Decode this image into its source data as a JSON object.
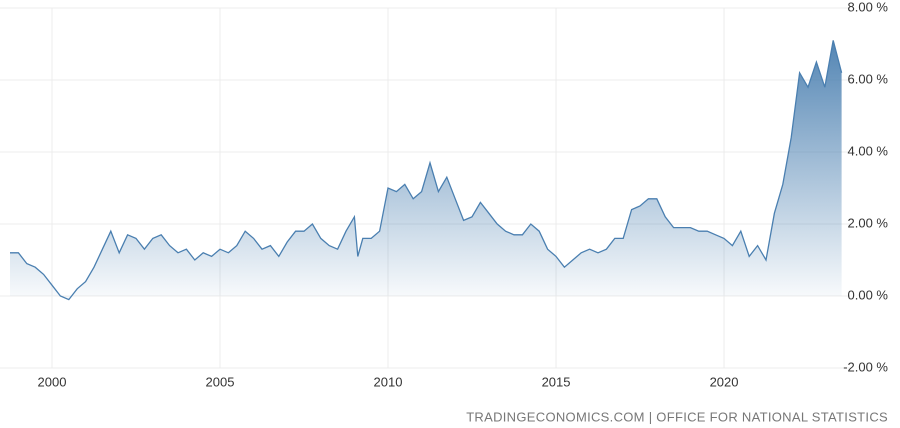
{
  "chart_data": {
    "type": "area",
    "source": "TRADINGECONOMICS.COM | OFFICE FOR NATIONAL STATISTICS",
    "color": "#4a7fb0",
    "x": [
      1998.75,
      1999.0,
      1999.25,
      1999.5,
      1999.75,
      2000.0,
      2000.25,
      2000.5,
      2000.75,
      2001.0,
      2001.25,
      2001.5,
      2001.75,
      2002.0,
      2002.25,
      2002.5,
      2002.75,
      2003.0,
      2003.25,
      2003.5,
      2003.75,
      2004.0,
      2004.25,
      2004.5,
      2004.75,
      2005.0,
      2005.25,
      2005.5,
      2005.75,
      2006.0,
      2006.25,
      2006.5,
      2006.75,
      2007.0,
      2007.25,
      2007.5,
      2007.75,
      2008.0,
      2008.25,
      2008.5,
      2008.75,
      2009.0,
      2009.1,
      2009.25,
      2009.5,
      2009.75,
      2010.0,
      2010.25,
      2010.5,
      2010.75,
      2011.0,
      2011.25,
      2011.5,
      2011.75,
      2012.0,
      2012.25,
      2012.5,
      2012.75,
      2013.0,
      2013.25,
      2013.5,
      2013.75,
      2014.0,
      2014.25,
      2014.5,
      2014.75,
      2015.0,
      2015.25,
      2015.5,
      2015.75,
      2016.0,
      2016.25,
      2016.5,
      2016.75,
      2017.0,
      2017.25,
      2017.5,
      2017.75,
      2018.0,
      2018.25,
      2018.5,
      2018.75,
      2019.0,
      2019.25,
      2019.5,
      2019.75,
      2020.0,
      2020.25,
      2020.5,
      2020.75,
      2021.0,
      2021.25,
      2021.5,
      2021.75,
      2022.0,
      2022.25,
      2022.5,
      2022.75,
      2023.0,
      2023.25,
      2023.5
    ],
    "values": [
      1.2,
      1.2,
      0.9,
      0.8,
      0.6,
      0.3,
      0.0,
      -0.1,
      0.2,
      0.4,
      0.8,
      1.3,
      1.8,
      1.2,
      1.7,
      1.6,
      1.3,
      1.6,
      1.7,
      1.4,
      1.2,
      1.3,
      1.0,
      1.2,
      1.1,
      1.3,
      1.2,
      1.4,
      1.8,
      1.6,
      1.3,
      1.4,
      1.1,
      1.5,
      1.8,
      1.8,
      2.0,
      1.6,
      1.4,
      1.3,
      1.8,
      2.2,
      1.1,
      1.6,
      1.6,
      1.8,
      3.0,
      2.9,
      3.1,
      2.7,
      2.9,
      3.7,
      2.9,
      3.3,
      2.7,
      2.1,
      2.2,
      2.6,
      2.3,
      2.0,
      1.8,
      1.7,
      1.7,
      2.0,
      1.8,
      1.3,
      1.1,
      0.8,
      1.0,
      1.2,
      1.3,
      1.2,
      1.3,
      1.6,
      1.6,
      2.4,
      2.5,
      2.7,
      2.7,
      2.2,
      1.9,
      1.9,
      1.9,
      1.8,
      1.8,
      1.7,
      1.6,
      1.4,
      1.8,
      1.1,
      1.4,
      1.0,
      2.3,
      3.1,
      4.4,
      6.2,
      5.8,
      6.5,
      5.8,
      7.1,
      6.2
    ],
    "xlim": [
      1998.75,
      2023.6
    ],
    "xticks": [
      2000,
      2005,
      2010,
      2015,
      2020
    ],
    "ylim": [
      -2,
      8
    ],
    "yticks": [
      {
        "value": 8,
        "label": "8.00 %"
      },
      {
        "value": 6,
        "label": "6.00 %"
      },
      {
        "value": 4,
        "label": "4.00 %"
      },
      {
        "value": 2,
        "label": "2.00 %"
      },
      {
        "value": 0,
        "label": "0.00 %"
      },
      {
        "value": -2,
        "label": "-2.00 %"
      }
    ],
    "grid": true
  }
}
